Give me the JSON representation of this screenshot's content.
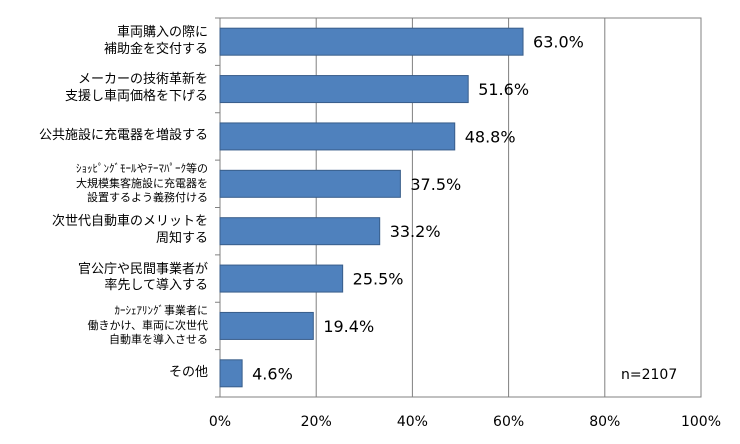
{
  "chart_data": {
    "type": "bar",
    "orientation": "horizontal",
    "categories": [
      "車両購入の際に\n補助金を交付する",
      "メーカーの技術革新を\n支援し車両価格を下げる",
      "公共施設に充電器を増設する",
      "ｼｮｯﾋﾟﾝｸﾞﾓｰﾙやﾃｰﾏﾊﾟｰｸ等の\n大規模集客施設に充電器を\n設置するよう義務付ける",
      "次世代自動車のメリットを\n周知する",
      "官公庁や民間事業者が\n率先して導入する",
      "ｶｰｼｪｱﾘﾝｸﾞ事業者に\n働きかけ、車両に次世代\n自動車を導入させる",
      "その他"
    ],
    "values": [
      63.0,
      51.6,
      48.8,
      37.5,
      33.2,
      25.5,
      19.4,
      4.6
    ],
    "value_labels": [
      "63.0%",
      "51.6%",
      "48.8%",
      "37.5%",
      "33.2%",
      "25.5%",
      "19.4%",
      "4.6%"
    ],
    "xlim": [
      0,
      100
    ],
    "xticks": [
      0,
      20,
      40,
      60,
      80,
      100
    ],
    "xtick_labels": [
      "0%",
      "20%",
      "40%",
      "60%",
      "80%",
      "100%"
    ],
    "grid": "vertical",
    "bar_color": "#4F81BD",
    "bar_edge_color": "#385D8A",
    "grid_color": "#808080",
    "annotation": "n=2107"
  }
}
